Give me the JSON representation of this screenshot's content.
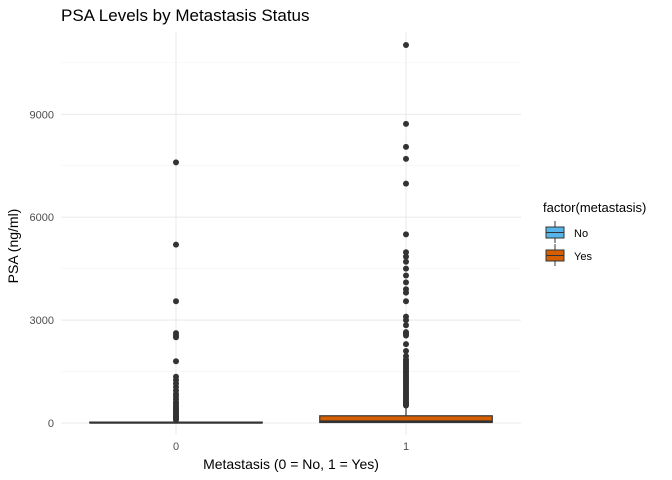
{
  "chart_data": {
    "type": "boxplot",
    "title": "PSA Levels by Metastasis Status",
    "xlabel": "Metastasis (0 = No, 1 = Yes)",
    "ylabel": "PSA (ng/ml)",
    "ylim": [
      -350,
      11400
    ],
    "y_ticks": [
      0,
      3000,
      6000,
      9000
    ],
    "y_tick_labels": [
      "0",
      "3000",
      "6000",
      "9000"
    ],
    "grid": true,
    "legend_position": "right",
    "legend": {
      "title": "factor(metastasis)",
      "entries": [
        {
          "label": "No",
          "color": "#56B4E9"
        },
        {
          "label": "Yes",
          "color": "#D55E00"
        }
      ]
    },
    "categories": [
      "0",
      "1"
    ],
    "boxes": [
      {
        "category": "0",
        "series": "No",
        "color": "#56B4E9",
        "min": 0,
        "q1": 5,
        "median": 10,
        "q3": 25,
        "max": 60,
        "outliers": [
          7600,
          5200,
          3550,
          2620,
          2550,
          2500,
          1800,
          1350,
          1250,
          1150,
          1050,
          950,
          850,
          780,
          700,
          620,
          560,
          500,
          450,
          400,
          360,
          320,
          280,
          240,
          200,
          170,
          140,
          120,
          100
        ]
      },
      {
        "category": "1",
        "series": "Yes",
        "color": "#D55E00",
        "min": 0,
        "q1": 15,
        "median": 45,
        "q3": 210,
        "max": 500,
        "outliers": [
          11020,
          8720,
          8050,
          7700,
          6980,
          5500,
          4980,
          4850,
          4700,
          4500,
          4300,
          4100,
          3900,
          3800,
          3550,
          3100,
          3000,
          2850,
          2650,
          2600,
          2550,
          2300,
          2100,
          1950,
          1850,
          1800,
          1750,
          1700,
          1650,
          1600,
          1550,
          1500,
          1450,
          1400,
          1350,
          1300,
          1250,
          1200,
          1150,
          1100,
          1050,
          1000,
          950,
          900,
          850,
          800,
          750,
          700,
          650,
          600,
          560,
          530,
          510
        ]
      }
    ]
  }
}
